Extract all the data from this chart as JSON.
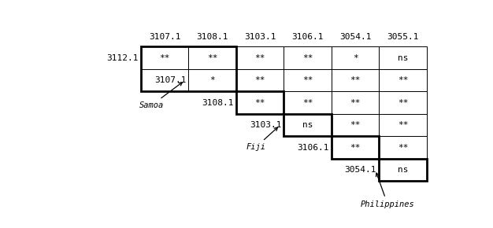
{
  "col_headers": [
    "3107.1",
    "3108.1",
    "3103.1",
    "3106.1",
    "3054.1",
    "3055.1"
  ],
  "row_labels": [
    "3112.1",
    "3107.1",
    "3108.1",
    "3103.1",
    "3106.1",
    "3054.1"
  ],
  "cells": [
    [
      "**",
      "**",
      "**",
      "**",
      "*",
      "ns"
    ],
    [
      "*",
      "**",
      "**",
      "**",
      "**"
    ],
    [
      "**",
      "**",
      "**",
      "**"
    ],
    [
      "ns",
      "**",
      "**"
    ],
    [
      "**",
      "**"
    ],
    [
      "ns"
    ]
  ],
  "bg_color": "white",
  "text_color": "black",
  "font_size": 8,
  "label_font_size": 8,
  "header_font_size": 8,
  "thin_lw": 0.7,
  "bold_lw": 2.0
}
